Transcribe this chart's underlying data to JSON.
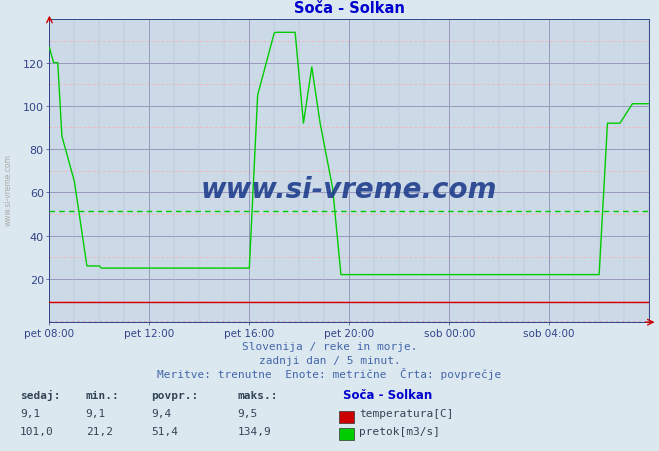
{
  "title": "Soča - Solkan",
  "title_color": "#0000cc",
  "bg_color": "#dce8f0",
  "plot_bg_color": "#ccdae8",
  "ylim": [
    0,
    140
  ],
  "yticks": [
    20,
    40,
    60,
    80,
    100,
    120
  ],
  "xtick_labels": [
    "pet 08:00",
    "pet 12:00",
    "pet 16:00",
    "pet 20:00",
    "sob 00:00",
    "sob 04:00"
  ],
  "xtick_pos": [
    0,
    48,
    96,
    144,
    192,
    240
  ],
  "n_points": 289,
  "avg_flow": 51.4,
  "avg_line_color": "#00cc00",
  "temp_color": "#cc0000",
  "flow_color": "#00cc00",
  "grid_major_color": "#9999bb",
  "grid_minor_h_color": "#ffaaaa",
  "grid_minor_v_color": "#bbbbcc",
  "watermark_text": "www.si-vreme.com",
  "watermark_color": "#1a3a8a",
  "sidebar_text": "www.si-vreme.com",
  "sidebar_color": "#aaaaaa",
  "subtitle1": "Slovenija / reke in morje.",
  "subtitle2": "zadnji dan / 5 minut.",
  "subtitle3": "Meritve: trenutne  Enote: metrične  Črta: povprečje",
  "legend_title": "Soča - Solkan",
  "stats_headers": [
    "sedaj:",
    "min.:",
    "povpr.:",
    "maks.:"
  ],
  "temp_stats": [
    "9,1",
    "9,1",
    "9,4",
    "9,5"
  ],
  "flow_stats": [
    "101,0",
    "21,2",
    "51,4",
    "134,9"
  ],
  "legend_temp_label": "temperatura[C]",
  "legend_flow_label": "pretok[m3/s]"
}
